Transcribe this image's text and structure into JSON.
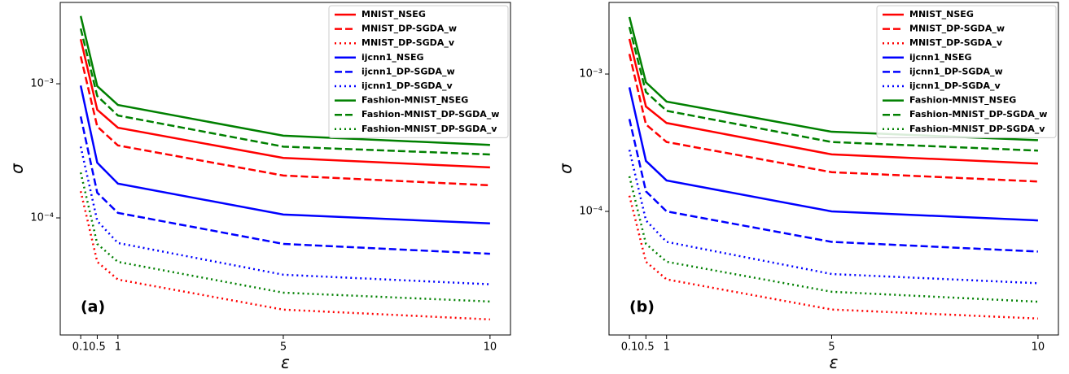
{
  "chart_data": [
    {
      "type": "line",
      "xlabel": "ε",
      "ylabel": "σ",
      "annotation": "(a)",
      "log_y": true,
      "legend": "upper right",
      "x": [
        0.1,
        0.5,
        1,
        5,
        10
      ],
      "xlim": [
        -0.395,
        10.495
      ],
      "xticks": [
        0.1,
        0.5,
        1,
        5,
        10
      ],
      "ylim": [
        1.34e-05,
        0.00404
      ],
      "yticks": [
        {
          "value": 0.001,
          "label": "10⁻³"
        },
        {
          "value": 0.0001,
          "label": "10⁻⁴"
        }
      ],
      "series": [
        {
          "name": "MNIST_NSEG",
          "color": "#ff0000",
          "dash": "solid",
          "values": [
            0.00215,
            0.00064,
            0.00047,
            0.00028,
            0.000238
          ]
        },
        {
          "name": "MNIST_DP-SGDA_w",
          "color": "#ff0000",
          "dash": "dashed",
          "values": [
            0.0016,
            0.00048,
            0.000347,
            0.000207,
            0.000175
          ]
        },
        {
          "name": "MNIST_DP-SGDA_v",
          "color": "#ff0000",
          "dash": "dotted",
          "values": [
            0.000158,
            4.7e-05,
            3.47e-05,
            2.07e-05,
            1.75e-05
          ]
        },
        {
          "name": "ijcnn1_NSEG",
          "color": "#0000ff",
          "dash": "solid",
          "values": [
            0.00097,
            0.000258,
            0.00018,
            0.000106,
            9.1e-05
          ]
        },
        {
          "name": "ijcnn1_DP-SGDA_w",
          "color": "#0000ff",
          "dash": "dashed",
          "values": [
            0.00057,
            0.000154,
            0.000109,
            6.4e-05,
            5.4e-05
          ]
        },
        {
          "name": "ijcnn1_DP-SGDA_v",
          "color": "#0000ff",
          "dash": "dotted",
          "values": [
            0.00034,
            9.5e-05,
            6.5e-05,
            3.77e-05,
            3.2e-05
          ]
        },
        {
          "name": "Fashion-MNIST_NSEG",
          "color": "#008000",
          "dash": "solid",
          "values": [
            0.0032,
            0.00096,
            0.000695,
            0.00041,
            0.00035
          ]
        },
        {
          "name": "Fashion-MNIST_DP-SGDA_w",
          "color": "#008000",
          "dash": "dashed",
          "values": [
            0.00258,
            0.00081,
            0.00058,
            0.00034,
            0.000297
          ]
        },
        {
          "name": "Fashion-MNIST_DP-SGDA_v",
          "color": "#008000",
          "dash": "dotted",
          "values": [
            0.000218,
            6.4e-05,
            4.7e-05,
            2.77e-05,
            2.38e-05
          ]
        }
      ]
    },
    {
      "type": "line",
      "xlabel": "ε",
      "ylabel": "σ",
      "annotation": "(b)",
      "log_y": true,
      "legend": "upper right",
      "x": [
        0.1,
        0.5,
        1,
        5,
        10
      ],
      "xlim": [
        -0.395,
        10.495
      ],
      "xticks": [
        0.1,
        0.5,
        1,
        5,
        10
      ],
      "ylim": [
        1.26e-05,
        0.00332
      ],
      "yticks": [
        {
          "value": 0.001,
          "label": "10⁻³"
        },
        {
          "value": 0.0001,
          "label": "10⁻⁴"
        }
      ],
      "series": [
        {
          "name": "MNIST_NSEG",
          "color": "#ff0000",
          "dash": "solid",
          "values": [
            0.0018,
            0.00058,
            0.00044,
            0.00026,
            0.000223
          ]
        },
        {
          "name": "MNIST_DP-SGDA_w",
          "color": "#ff0000",
          "dash": "dashed",
          "values": [
            0.0014,
            0.00043,
            0.00032,
            0.000193,
            0.000165
          ]
        },
        {
          "name": "MNIST_DP-SGDA_v",
          "color": "#ff0000",
          "dash": "dotted",
          "values": [
            0.00013,
            4.3e-05,
            3.2e-05,
            1.93e-05,
            1.66e-05
          ]
        },
        {
          "name": "ijcnn1_NSEG",
          "color": "#0000ff",
          "dash": "solid",
          "values": [
            0.0008,
            0.000233,
            0.000168,
            0.0001,
            8.6e-05
          ]
        },
        {
          "name": "ijcnn1_DP-SGDA_w",
          "color": "#0000ff",
          "dash": "dashed",
          "values": [
            0.00047,
            0.00014,
            0.0001,
            6e-05,
            5.1e-05
          ]
        },
        {
          "name": "ijcnn1_DP-SGDA_v",
          "color": "#0000ff",
          "dash": "dotted",
          "values": [
            0.00028,
            8.6e-05,
            6e-05,
            3.5e-05,
            3e-05
          ]
        },
        {
          "name": "Fashion-MNIST_NSEG",
          "color": "#008000",
          "dash": "solid",
          "values": [
            0.0026,
            0.00087,
            0.00063,
            0.00038,
            0.00033
          ]
        },
        {
          "name": "Fashion-MNIST_DP-SGDA_w",
          "color": "#008000",
          "dash": "dashed",
          "values": [
            0.0022,
            0.00074,
            0.00054,
            0.00032,
            0.000277
          ]
        },
        {
          "name": "Fashion-MNIST_DP-SGDA_v",
          "color": "#008000",
          "dash": "dotted",
          "values": [
            0.00018,
            5.8e-05,
            4.3e-05,
            2.6e-05,
            2.2e-05
          ]
        }
      ]
    }
  ]
}
